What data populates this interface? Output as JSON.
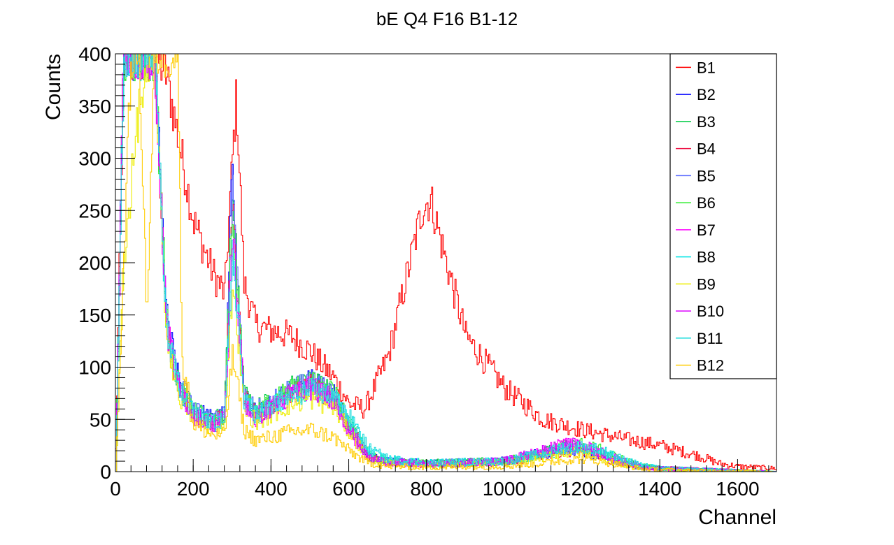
{
  "chart_data": {
    "type": "line",
    "title": "bE Q4 F16 B1-12",
    "xlabel": "Channel",
    "ylabel": "Counts",
    "xlim": [
      0,
      1700
    ],
    "ylim": [
      0,
      400
    ],
    "xticks": [
      0,
      200,
      400,
      600,
      800,
      1000,
      1200,
      1400,
      1600
    ],
    "yticks": [
      0,
      50,
      100,
      150,
      200,
      250,
      300,
      350,
      400
    ],
    "grid": false,
    "legend_position": "top-right",
    "series": [
      {
        "name": "B1",
        "color": "#ff0000",
        "x": [
          0,
          20,
          60,
          100,
          130,
          160,
          200,
          250,
          280,
          300,
          310,
          330,
          360,
          400,
          450,
          500,
          560,
          600,
          640,
          700,
          750,
          790,
          810,
          850,
          900,
          1000,
          1100,
          1200,
          1300,
          1400,
          1500,
          1550,
          1600,
          1700
        ],
        "y": [
          20,
          400,
          400,
          400,
          380,
          320,
          240,
          190,
          170,
          300,
          360,
          180,
          140,
          135,
          130,
          115,
          90,
          65,
          60,
          110,
          190,
          255,
          260,
          200,
          130,
          80,
          50,
          40,
          32,
          25,
          15,
          8,
          5,
          3
        ]
      },
      {
        "name": "B2",
        "color": "#0000ff",
        "x": [
          0,
          20,
          60,
          100,
          130,
          160,
          200,
          250,
          280,
          300,
          310,
          330,
          360,
          400,
          450,
          500,
          560,
          600,
          650,
          700,
          800,
          1000,
          1100,
          1150,
          1200,
          1250,
          1300,
          1350,
          1400,
          1500,
          1600,
          1700
        ],
        "y": [
          0,
          400,
          400,
          400,
          150,
          90,
          60,
          50,
          55,
          300,
          200,
          70,
          55,
          65,
          80,
          88,
          75,
          45,
          15,
          10,
          8,
          10,
          18,
          22,
          20,
          14,
          8,
          4,
          3,
          2,
          1,
          0
        ]
      },
      {
        "name": "B3",
        "color": "#00cc44",
        "x": [
          0,
          20,
          60,
          100,
          130,
          160,
          200,
          250,
          280,
          300,
          310,
          330,
          360,
          400,
          450,
          500,
          560,
          600,
          650,
          700,
          800,
          1000,
          1100,
          1150,
          1200,
          1250,
          1300,
          1350,
          1400,
          1500,
          1600,
          1700
        ],
        "y": [
          0,
          400,
          400,
          400,
          150,
          85,
          58,
          50,
          55,
          280,
          210,
          75,
          60,
          68,
          80,
          85,
          75,
          45,
          15,
          10,
          8,
          10,
          18,
          24,
          24,
          18,
          10,
          5,
          3,
          2,
          1,
          0
        ]
      },
      {
        "name": "B4",
        "color": "#ee1144",
        "x": [
          0,
          20,
          60,
          100,
          130,
          160,
          200,
          250,
          280,
          300,
          310,
          330,
          360,
          400,
          450,
          500,
          560,
          600,
          650,
          700,
          800,
          1000,
          1100,
          1150,
          1200,
          1250,
          1300,
          1350,
          1400,
          1500,
          1600,
          1700
        ],
        "y": [
          0,
          400,
          400,
          400,
          140,
          80,
          55,
          48,
          52,
          260,
          190,
          70,
          55,
          62,
          75,
          82,
          72,
          42,
          14,
          9,
          7,
          9,
          16,
          20,
          20,
          14,
          8,
          4,
          3,
          2,
          1,
          0
        ]
      },
      {
        "name": "B5",
        "color": "#5566ff",
        "x": [
          0,
          20,
          60,
          100,
          130,
          160,
          200,
          250,
          280,
          300,
          310,
          330,
          360,
          400,
          450,
          500,
          560,
          600,
          650,
          700,
          800,
          1000,
          1100,
          1150,
          1200,
          1250,
          1300,
          1350,
          1400,
          1500,
          1600,
          1700
        ],
        "y": [
          0,
          400,
          400,
          400,
          150,
          85,
          58,
          48,
          55,
          270,
          200,
          70,
          58,
          66,
          78,
          85,
          74,
          44,
          15,
          10,
          8,
          10,
          17,
          22,
          22,
          16,
          9,
          4,
          3,
          2,
          1,
          0
        ]
      },
      {
        "name": "B6",
        "color": "#33ee33",
        "x": [
          0,
          20,
          60,
          100,
          130,
          160,
          200,
          250,
          280,
          300,
          310,
          330,
          360,
          400,
          450,
          500,
          560,
          600,
          650,
          700,
          800,
          1000,
          1100,
          1150,
          1200,
          1250,
          1300,
          1350,
          1400,
          1500,
          1600,
          1700
        ],
        "y": [
          0,
          400,
          400,
          400,
          145,
          82,
          56,
          48,
          54,
          255,
          190,
          72,
          58,
          66,
          78,
          86,
          76,
          46,
          16,
          10,
          8,
          10,
          18,
          25,
          26,
          20,
          12,
          5,
          3,
          2,
          1,
          0
        ]
      },
      {
        "name": "B7",
        "color": "#ff00ff",
        "x": [
          0,
          20,
          60,
          100,
          130,
          160,
          200,
          250,
          280,
          300,
          310,
          330,
          360,
          400,
          450,
          500,
          560,
          600,
          650,
          700,
          800,
          1000,
          1100,
          1150,
          1200,
          1250,
          1300,
          1350,
          1400,
          1500,
          1600,
          1700
        ],
        "y": [
          0,
          400,
          400,
          400,
          140,
          80,
          55,
          45,
          50,
          220,
          170,
          65,
          50,
          60,
          74,
          80,
          70,
          40,
          13,
          9,
          7,
          10,
          20,
          28,
          26,
          18,
          10,
          5,
          3,
          2,
          1,
          0
        ]
      },
      {
        "name": "B8",
        "color": "#00e5e5",
        "x": [
          0,
          20,
          60,
          100,
          130,
          160,
          200,
          250,
          280,
          300,
          310,
          330,
          360,
          400,
          450,
          500,
          560,
          600,
          650,
          700,
          800,
          1000,
          1100,
          1150,
          1200,
          1250,
          1300,
          1350,
          1400,
          1500,
          1600,
          1700
        ],
        "y": [
          0,
          400,
          400,
          400,
          140,
          82,
          55,
          46,
          52,
          210,
          170,
          68,
          55,
          62,
          72,
          78,
          72,
          50,
          20,
          12,
          8,
          10,
          16,
          22,
          24,
          20,
          12,
          6,
          3,
          2,
          1,
          0
        ]
      },
      {
        "name": "B9",
        "color": "#eeee00",
        "x": [
          0,
          20,
          60,
          100,
          130,
          160,
          200,
          250,
          280,
          300,
          310,
          330,
          360,
          400,
          450,
          500,
          560,
          600,
          650,
          700,
          800,
          1000,
          1100,
          1150,
          1200,
          1250,
          1300,
          1350,
          1400,
          1500,
          1600,
          1700
        ],
        "y": [
          0,
          200,
          350,
          400,
          130,
          75,
          50,
          42,
          48,
          180,
          150,
          60,
          48,
          55,
          65,
          70,
          62,
          38,
          12,
          8,
          6,
          8,
          14,
          18,
          18,
          13,
          7,
          3,
          2,
          1,
          1,
          0
        ]
      },
      {
        "name": "B10",
        "color": "#dd00ff",
        "x": [
          0,
          20,
          60,
          100,
          130,
          160,
          200,
          250,
          280,
          300,
          310,
          330,
          360,
          400,
          450,
          500,
          560,
          600,
          650,
          700,
          800,
          1000,
          1100,
          1150,
          1200,
          1250,
          1300,
          1350,
          1400,
          1500,
          1600,
          1700
        ],
        "y": [
          0,
          400,
          400,
          400,
          140,
          80,
          54,
          46,
          50,
          230,
          175,
          66,
          52,
          62,
          74,
          80,
          70,
          40,
          13,
          9,
          7,
          10,
          20,
          26,
          25,
          18,
          10,
          5,
          3,
          2,
          1,
          0
        ]
      },
      {
        "name": "B11",
        "color": "#22dddd",
        "x": [
          0,
          20,
          60,
          100,
          130,
          160,
          200,
          250,
          280,
          300,
          310,
          330,
          360,
          400,
          450,
          500,
          560,
          600,
          650,
          700,
          800,
          1000,
          1100,
          1150,
          1200,
          1250,
          1300,
          1350,
          1400,
          1500,
          1600,
          1700
        ],
        "y": [
          0,
          400,
          400,
          400,
          140,
          82,
          55,
          46,
          52,
          205,
          165,
          66,
          55,
          62,
          72,
          78,
          72,
          52,
          22,
          12,
          8,
          10,
          17,
          23,
          24,
          20,
          12,
          6,
          3,
          2,
          1,
          0
        ]
      },
      {
        "name": "B12",
        "color": "#ffcc00",
        "x": [
          0,
          20,
          40,
          60,
          80,
          100,
          130,
          150,
          160,
          170,
          200,
          250,
          280,
          300,
          310,
          330,
          360,
          400,
          450,
          500,
          560,
          600,
          650,
          700,
          800,
          1000,
          1100,
          1150,
          1200,
          1250,
          1300,
          1350,
          1400,
          1500,
          1600,
          1700
        ],
        "y": [
          0,
          200,
          400,
          400,
          150,
          400,
          400,
          400,
          400,
          110,
          45,
          35,
          35,
          110,
          90,
          40,
          30,
          33,
          38,
          40,
          33,
          20,
          8,
          5,
          4,
          5,
          8,
          11,
          12,
          10,
          6,
          3,
          2,
          1,
          1,
          0
        ]
      }
    ]
  }
}
